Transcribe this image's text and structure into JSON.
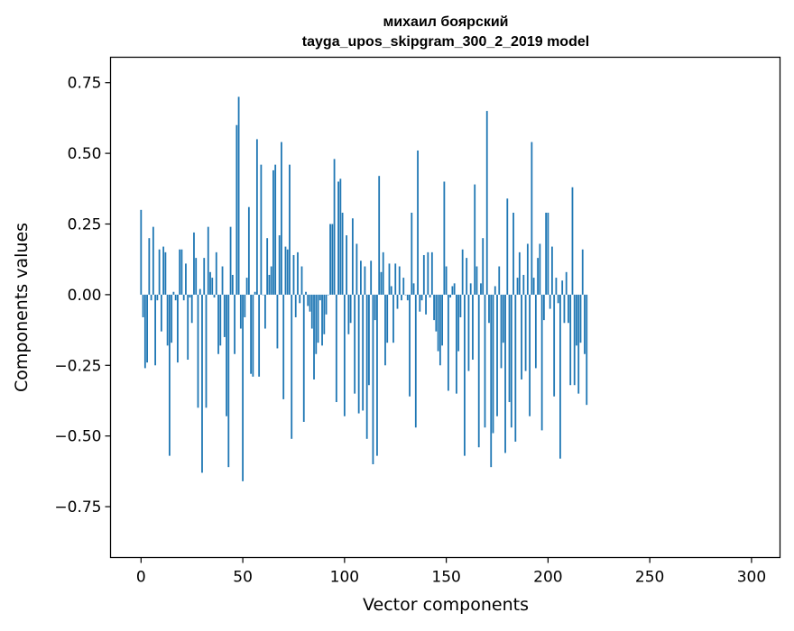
{
  "chart_data": {
    "type": "bar",
    "title": "михаил боярский",
    "subtitle": "tayga_upos_skipgram_300_2_2019 model",
    "xlabel": "Vector components",
    "ylabel": "Components values",
    "xlim": [
      -15,
      314
    ],
    "ylim": [
      -0.93,
      0.84
    ],
    "xticks": [
      {
        "value": 0,
        "label": "0"
      },
      {
        "value": 50,
        "label": "50"
      },
      {
        "value": 100,
        "label": "100"
      },
      {
        "value": 150,
        "label": "150"
      },
      {
        "value": 200,
        "label": "200"
      },
      {
        "value": 250,
        "label": "250"
      },
      {
        "value": 300,
        "label": "300"
      }
    ],
    "yticks": [
      {
        "value": 0.75,
        "label": "0.75"
      },
      {
        "value": 0.5,
        "label": "0.50"
      },
      {
        "value": 0.25,
        "label": "0.25"
      },
      {
        "value": 0.0,
        "label": "0.00"
      },
      {
        "value": -0.25,
        "label": "−0.25"
      },
      {
        "value": -0.5,
        "label": "−0.50"
      },
      {
        "value": -0.75,
        "label": "−0.75"
      }
    ],
    "grid": false,
    "bar_color": "#1f77b4",
    "values": [
      0.3,
      -0.08,
      -0.26,
      -0.24,
      0.2,
      -0.02,
      0.24,
      -0.25,
      -0.02,
      0.16,
      -0.13,
      0.17,
      0.15,
      -0.18,
      -0.57,
      -0.17,
      0.01,
      -0.02,
      -0.24,
      0.16,
      0.16,
      -0.02,
      0.11,
      -0.23,
      -0.01,
      -0.1,
      0.22,
      0.13,
      -0.4,
      0.02,
      -0.63,
      0.13,
      -0.4,
      0.24,
      0.08,
      0.06,
      -0.01,
      0.15,
      -0.21,
      -0.18,
      0.1,
      -0.15,
      -0.43,
      -0.61,
      0.24,
      0.07,
      -0.21,
      0.6,
      0.7,
      -0.12,
      -0.66,
      -0.08,
      0.06,
      0.31,
      -0.28,
      -0.29,
      0.01,
      0.55,
      -0.29,
      0.46,
      0.0,
      -0.12,
      0.2,
      0.07,
      0.1,
      0.44,
      0.46,
      -0.19,
      0.21,
      0.54,
      -0.37,
      0.17,
      0.16,
      0.46,
      -0.51,
      0.14,
      -0.08,
      0.15,
      -0.03,
      0.1,
      -0.45,
      0.01,
      -0.04,
      -0.06,
      -0.12,
      -0.3,
      -0.21,
      -0.17,
      -0.02,
      -0.18,
      -0.14,
      -0.07,
      0.0,
      0.25,
      0.25,
      0.48,
      -0.38,
      0.4,
      0.41,
      0.29,
      -0.43,
      0.21,
      -0.14,
      -0.1,
      0.27,
      -0.35,
      0.18,
      -0.42,
      0.12,
      -0.41,
      0.1,
      -0.51,
      -0.32,
      0.12,
      -0.6,
      -0.09,
      -0.57,
      0.42,
      0.08,
      0.15,
      -0.25,
      -0.17,
      0.11,
      0.03,
      -0.17,
      0.11,
      -0.05,
      0.1,
      -0.02,
      0.06,
      0.0,
      -0.02,
      -0.36,
      0.29,
      0.04,
      -0.47,
      0.51,
      -0.06,
      -0.02,
      0.14,
      -0.07,
      0.15,
      -0.01,
      0.15,
      -0.09,
      -0.13,
      -0.2,
      -0.25,
      -0.18,
      0.4,
      0.1,
      -0.34,
      -0.01,
      0.03,
      0.04,
      -0.35,
      -0.2,
      -0.08,
      0.16,
      -0.57,
      0.13,
      -0.27,
      0.04,
      -0.23,
      0.39,
      0.1,
      -0.54,
      0.04,
      0.2,
      -0.47,
      0.65,
      -0.1,
      -0.61,
      -0.49,
      0.03,
      -0.43,
      0.1,
      -0.26,
      -0.17,
      -0.56,
      0.34,
      -0.38,
      -0.47,
      0.29,
      -0.52,
      0.06,
      0.15,
      -0.3,
      0.07,
      -0.27,
      0.18,
      -0.43,
      0.54,
      0.06,
      -0.26,
      0.13,
      0.18,
      -0.48,
      -0.09,
      0.29,
      0.29,
      -0.05,
      0.17,
      -0.36,
      0.06,
      -0.03,
      -0.58,
      0.05,
      -0.1,
      0.08,
      -0.1,
      -0.32,
      0.38,
      -0.32,
      -0.18,
      -0.35,
      -0.17,
      0.16,
      -0.21,
      -0.39
    ]
  }
}
